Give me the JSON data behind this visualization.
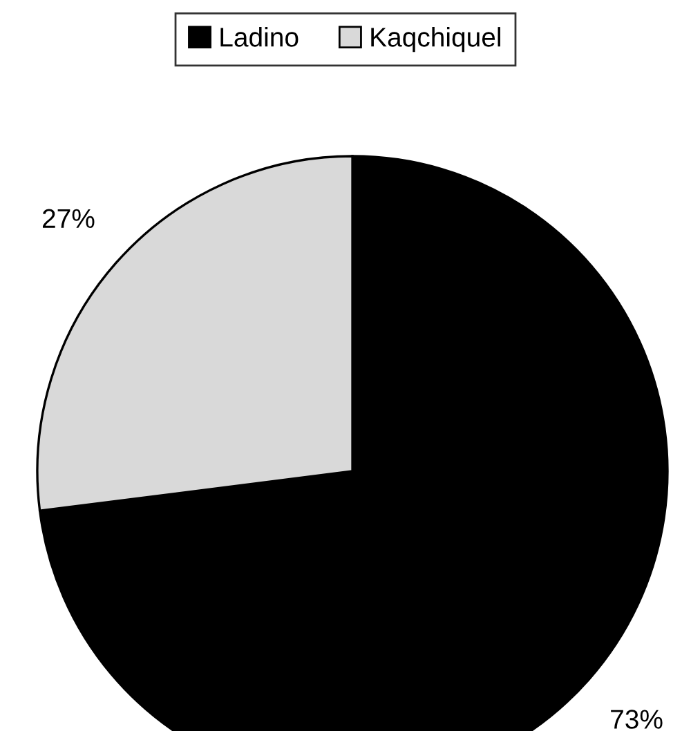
{
  "chart_data": {
    "type": "pie",
    "categories": [
      "Ladino",
      "Kaqchiquel"
    ],
    "values": [
      73,
      27
    ],
    "value_labels": [
      "73%",
      "27%"
    ],
    "colors": [
      "#000000",
      "#d9d9d9"
    ],
    "legend": "top"
  }
}
